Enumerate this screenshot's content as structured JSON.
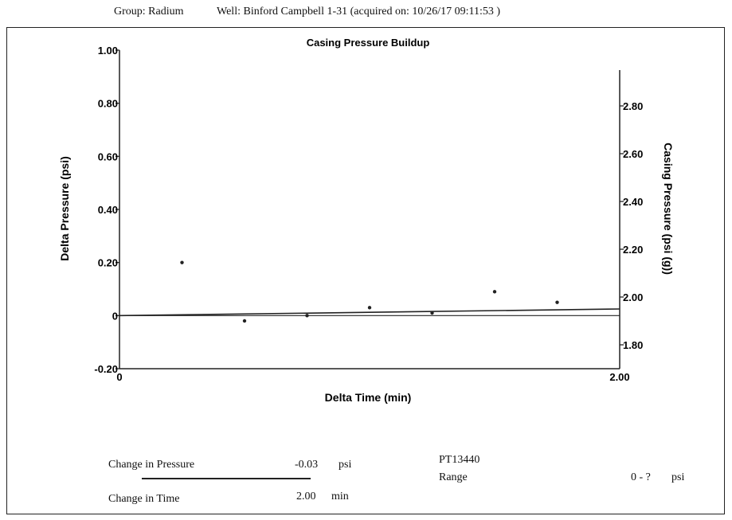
{
  "header": {
    "group": "Group: Radium",
    "well": "Well: Binford Campbell 1-31 (acquired on: 10/26/17 09:11:53 )"
  },
  "chart_data": {
    "type": "scatter",
    "title": "Casing Pressure Buildup",
    "xlabel": "Delta Time (min)",
    "ylabel": "Delta Pressure (psi)",
    "y2label": "Casing Pressure (psi (g))",
    "xlim": [
      0,
      2.0
    ],
    "ylim": [
      -0.2,
      1.0
    ],
    "y2lim": [
      1.7,
      2.95
    ],
    "x_ticks": [
      "0",
      "2.00"
    ],
    "y_ticks": [
      {
        "v": 1.0,
        "label": "1.00"
      },
      {
        "v": 0.8,
        "label": "0.80"
      },
      {
        "v": 0.6,
        "label": "0.60"
      },
      {
        "v": 0.4,
        "label": "0.40"
      },
      {
        "v": 0.2,
        "label": "0.20"
      },
      {
        "v": 0.0,
        "label": "0"
      },
      {
        "v": -0.2,
        "label": "-0.20"
      }
    ],
    "y2_ticks": [
      {
        "v": 2.8,
        "label": "2.80"
      },
      {
        "v": 2.6,
        "label": "2.60"
      },
      {
        "v": 2.4,
        "label": "2.40"
      },
      {
        "v": 2.2,
        "label": "2.20"
      },
      {
        "v": 2.0,
        "label": "2.00"
      },
      {
        "v": 1.8,
        "label": "1.80"
      }
    ],
    "points": [
      {
        "x": 0.25,
        "y": 0.2
      },
      {
        "x": 0.5,
        "y": -0.02
      },
      {
        "x": 0.75,
        "y": 0.0
      },
      {
        "x": 1.0,
        "y": 0.03
      },
      {
        "x": 1.25,
        "y": 0.01
      },
      {
        "x": 1.5,
        "y": 0.09
      },
      {
        "x": 1.75,
        "y": 0.05
      }
    ],
    "trend_line": [
      {
        "x": 0,
        "y": 0.0
      },
      {
        "x": 2.0,
        "y": 0.025
      }
    ]
  },
  "footer": {
    "change_pressure_label": "Change in Pressure",
    "change_pressure_value": "-0.03",
    "change_pressure_unit": "psi",
    "change_time_label": "Change in Time",
    "change_time_value": "2.00",
    "change_time_unit": "min",
    "sensor_id": "PT13440",
    "range_label": "Range",
    "range_value": "0 - ?",
    "range_unit": "psi"
  }
}
